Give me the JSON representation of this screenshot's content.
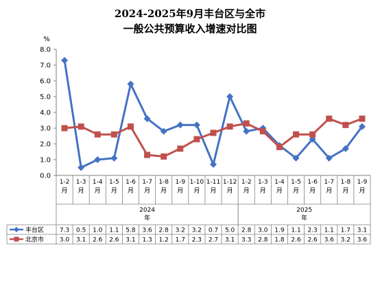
{
  "chart_data": {
    "type": "line",
    "title_line1": "2024-2025年9月丰台区与全市",
    "title_line2": "一般公共预算收入增速对比图",
    "ylabel": "%",
    "ylim": [
      0,
      8
    ],
    "yticks": [
      "8.0",
      "7.0",
      "6.0",
      "5.0",
      "4.0",
      "3.0",
      "2.0",
      "1.0",
      "0.0"
    ],
    "categories": [
      {
        "top": "1-2",
        "bottom": "月"
      },
      {
        "top": "1-3",
        "bottom": "月"
      },
      {
        "top": "1-4",
        "bottom": "月"
      },
      {
        "top": "1-5",
        "bottom": "月"
      },
      {
        "top": "1-6",
        "bottom": "月"
      },
      {
        "top": "1-7",
        "bottom": "月"
      },
      {
        "top": "1-8",
        "bottom": "月"
      },
      {
        "top": "1-9",
        "bottom": "月"
      },
      {
        "top": "1-10",
        "bottom": "月"
      },
      {
        "top": "1-11",
        "bottom": "月"
      },
      {
        "top": "1-12",
        "bottom": "月"
      },
      {
        "top": "1-2",
        "bottom": "月"
      },
      {
        "top": "1-3",
        "bottom": "月"
      },
      {
        "top": "1-4",
        "bottom": "月"
      },
      {
        "top": "1-5",
        "bottom": "月"
      },
      {
        "top": "1-6",
        "bottom": "月"
      },
      {
        "top": "1-7",
        "bottom": "月"
      },
      {
        "top": "1-8",
        "bottom": "月"
      },
      {
        "top": "1-9",
        "bottom": "月"
      }
    ],
    "groups": [
      {
        "label": "2024",
        "sub": "年",
        "count": 11
      },
      {
        "label": "2025",
        "sub": "年",
        "count": 8
      }
    ],
    "series": [
      {
        "name": "丰台区",
        "color": "#4472C4",
        "marker": "diamond",
        "values": [
          7.3,
          0.5,
          1.0,
          1.1,
          5.8,
          3.6,
          2.8,
          3.2,
          3.2,
          0.7,
          5.0,
          2.8,
          3.0,
          1.9,
          1.1,
          2.3,
          1.1,
          1.7,
          3.1
        ],
        "labels": [
          "7.3",
          "0.5",
          "1.0",
          "1.1",
          "5.8",
          "3.6",
          "2.8",
          "3.2",
          "3.2",
          "0.7",
          "5.0",
          "2.8",
          "3.0",
          "1.9",
          "1.1",
          "2.3",
          "1.1",
          "1.7",
          "3.1"
        ]
      },
      {
        "name": "北京市",
        "color": "#C0504D",
        "marker": "square",
        "values": [
          3.0,
          3.1,
          2.6,
          2.6,
          3.1,
          1.3,
          1.2,
          1.7,
          2.3,
          2.7,
          3.1,
          3.3,
          2.8,
          1.8,
          2.6,
          2.6,
          3.6,
          3.2,
          3.6
        ],
        "labels": [
          "3.0",
          "3.1",
          "2.6",
          "2.6",
          "3.1",
          "1.3",
          "1.2",
          "1.7",
          "2.3",
          "2.7",
          "3.1",
          "3.3",
          "2.8",
          "1.8",
          "2.6",
          "2.6",
          "3.6",
          "3.2",
          "3.6"
        ]
      }
    ],
    "legend": "data-table"
  }
}
